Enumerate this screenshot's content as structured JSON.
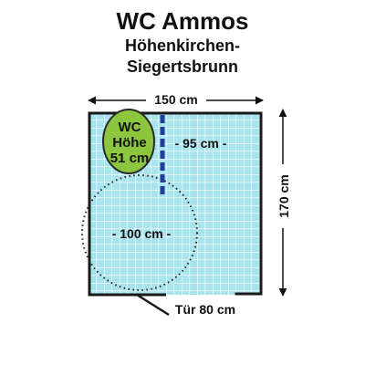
{
  "title": "WC Ammos",
  "location_line1": "Höhenkirchen-",
  "location_line2": "Siegertsbrunn",
  "dimensions": {
    "width": "150 cm",
    "height": "170 cm",
    "grab_bar_distance": "- 95 cm -",
    "turning_circle": "- 100 cm -",
    "door": "Tür 80 cm"
  },
  "wc": {
    "line1": "WC",
    "line2": "Höhe",
    "line3": "51 cm"
  },
  "colors": {
    "floor_tiles": "#a8e4ee",
    "tile_grout": "#ffffff",
    "wall": "#1a1a1a",
    "wc": "#8cc63f",
    "grab_bar": "#1f3f99"
  }
}
